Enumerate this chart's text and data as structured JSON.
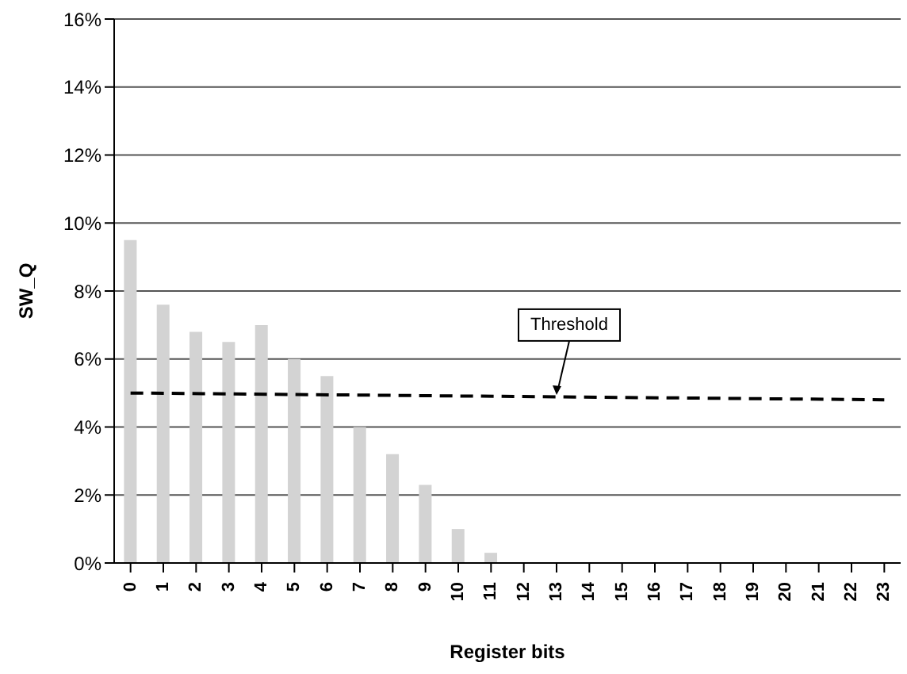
{
  "chart_data": {
    "type": "bar",
    "xlabel": "Register bits",
    "ylabel": "SW_Q",
    "categories": [
      "0",
      "1",
      "2",
      "3",
      "4",
      "5",
      "6",
      "7",
      "8",
      "9",
      "10",
      "11",
      "12",
      "13",
      "14",
      "15",
      "16",
      "17",
      "18",
      "19",
      "20",
      "21",
      "22",
      "23"
    ],
    "series": [
      {
        "color": "#d3d3d3",
        "values": [
          9.5,
          7.6,
          6.8,
          6.5,
          7.0,
          6.0,
          5.5,
          4.0,
          3.2,
          2.3,
          1.0,
          0.3,
          0,
          0,
          0,
          0,
          0,
          0,
          0,
          0,
          0,
          0,
          0,
          0
        ]
      },
      {
        "type": "line",
        "color": "#000000",
        "line_style": "dashed",
        "x": [
          "0",
          "23"
        ],
        "values": [
          5.0,
          4.8
        ]
      }
    ],
    "ylim": [
      0,
      16
    ],
    "yticks": [
      {
        "value": 0,
        "label": "0%"
      },
      {
        "value": 2,
        "label": "2%"
      },
      {
        "value": 4,
        "label": "4%"
      },
      {
        "value": 6,
        "label": "6%"
      },
      {
        "value": 8,
        "label": "8%"
      },
      {
        "value": 10,
        "label": "10%"
      },
      {
        "value": 12,
        "label": "12%"
      },
      {
        "value": 14,
        "label": "14%"
      },
      {
        "value": 16,
        "label": "16%"
      }
    ],
    "grid": "y",
    "annotations": [
      {
        "text": "Threshold",
        "x": "13",
        "y": 4.9
      }
    ]
  }
}
